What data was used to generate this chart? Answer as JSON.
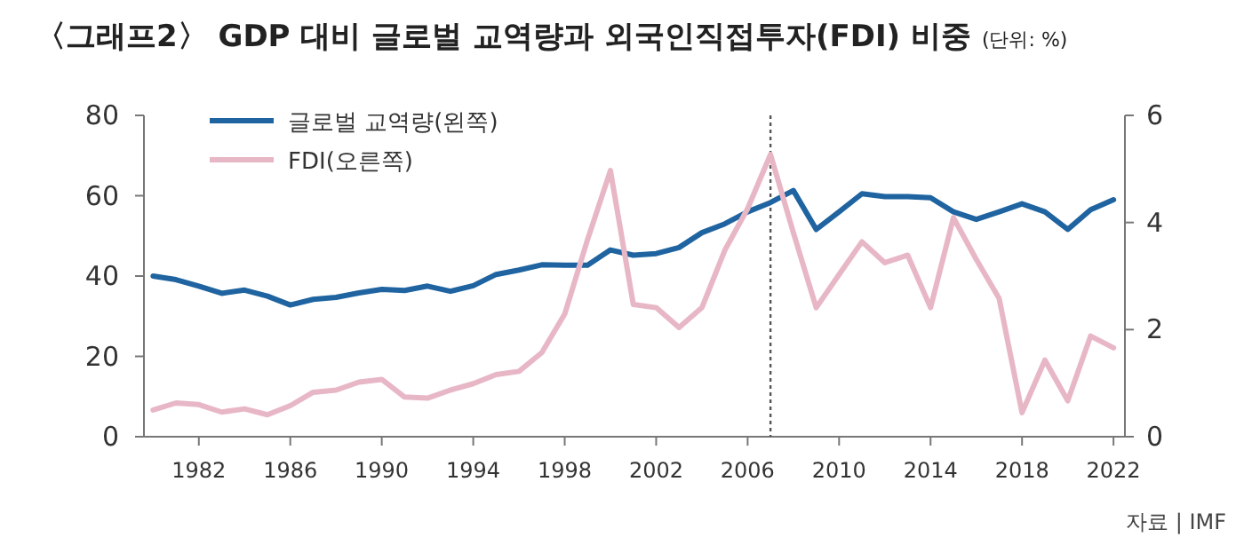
{
  "chart_data": {
    "type": "line",
    "title": "〈그래프2〉 GDP 대비 글로벌 교역량과 외국인직접투자(FDI) 비중",
    "subtitle": "(단위: %)",
    "x": [
      1980,
      1981,
      1982,
      1983,
      1984,
      1985,
      1986,
      1987,
      1988,
      1989,
      1990,
      1991,
      1992,
      1993,
      1994,
      1995,
      1996,
      1997,
      1998,
      1999,
      2000,
      2001,
      2002,
      2003,
      2004,
      2005,
      2006,
      2007,
      2008,
      2009,
      2010,
      2011,
      2012,
      2013,
      2014,
      2015,
      2016,
      2017,
      2018,
      2019,
      2020,
      2021,
      2022
    ],
    "series": [
      {
        "name": "글로벌 교역량(왼쪽)",
        "color": "#1f64a0",
        "axis": "y",
        "values": [
          40,
          39.1,
          37.5,
          35.7,
          36.5,
          35,
          32.8,
          34.2,
          34.7,
          35.8,
          36.7,
          36.4,
          37.5,
          36.2,
          37.6,
          40.4,
          41.5,
          42.8,
          42.7,
          42.7,
          46.5,
          45.2,
          45.6,
          47.1,
          50.8,
          53,
          56,
          58.3,
          61.3,
          51.6,
          56,
          60.5,
          59.8,
          59.8,
          59.5,
          56,
          54.1,
          56,
          58,
          56,
          51.6,
          56.5,
          59
        ]
      },
      {
        "name": "FDI(오른쪽)",
        "color": "#e8b7c6",
        "axis": "y2",
        "values": [
          0.5,
          0.63,
          0.6,
          0.46,
          0.52,
          0.41,
          0.58,
          0.83,
          0.87,
          1.02,
          1.07,
          0.74,
          0.72,
          0.87,
          0.99,
          1.16,
          1.22,
          1.57,
          2.29,
          3.68,
          4.97,
          2.47,
          2.41,
          2.04,
          2.41,
          3.48,
          4.26,
          5.27,
          3.81,
          2.41,
          3.03,
          3.64,
          3.25,
          3.39,
          2.41,
          4.09,
          3.31,
          2.58,
          0.45,
          1.43,
          0.67,
          1.88,
          1.66
        ]
      }
    ],
    "xlim": [
      1979.6,
      2022.5
    ],
    "xticks": [
      1982,
      1986,
      1990,
      1994,
      1998,
      2002,
      2006,
      2010,
      2014,
      2018,
      2022
    ],
    "ylim": [
      0,
      80
    ],
    "yticks": [
      0,
      20,
      40,
      60,
      80
    ],
    "y2lim": [
      0,
      6
    ],
    "y2ticks": [
      0,
      2,
      4,
      6
    ],
    "ref_lines": [
      {
        "axis": "x",
        "value": 2007,
        "color": "#555555",
        "line_style": "dotted"
      }
    ],
    "annotations": [
      "자료 | IMF"
    ],
    "legend": "top left",
    "grid": false,
    "marker": "none",
    "line_style": "solid"
  }
}
